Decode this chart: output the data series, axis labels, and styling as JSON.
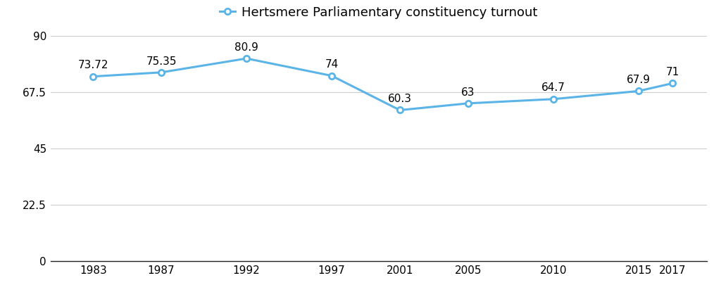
{
  "years": [
    1983,
    1987,
    1992,
    1997,
    2001,
    2005,
    2010,
    2015,
    2017
  ],
  "turnout": [
    73.72,
    75.35,
    80.9,
    74,
    60.3,
    63,
    64.7,
    67.9,
    71
  ],
  "labels": [
    "73.72",
    "75.35",
    "80.9",
    "74",
    "60.3",
    "63",
    "64.7",
    "67.9",
    "71"
  ],
  "line_color": "#5ab4e8",
  "marker_color": "#5ab4e8",
  "marker_face": "#ffffff",
  "legend_label": "Hertsmere Parliamentary constituency turnout",
  "ylim": [
    0,
    90
  ],
  "yticks": [
    0,
    22.5,
    45,
    67.5,
    90
  ],
  "ytick_labels": [
    "0",
    "22.5",
    "45",
    "67.5",
    "90"
  ],
  "background_color": "#ffffff",
  "grid_color": "#cccccc",
  "legend_fontsize": 13,
  "label_fontsize": 11,
  "tick_fontsize": 11
}
